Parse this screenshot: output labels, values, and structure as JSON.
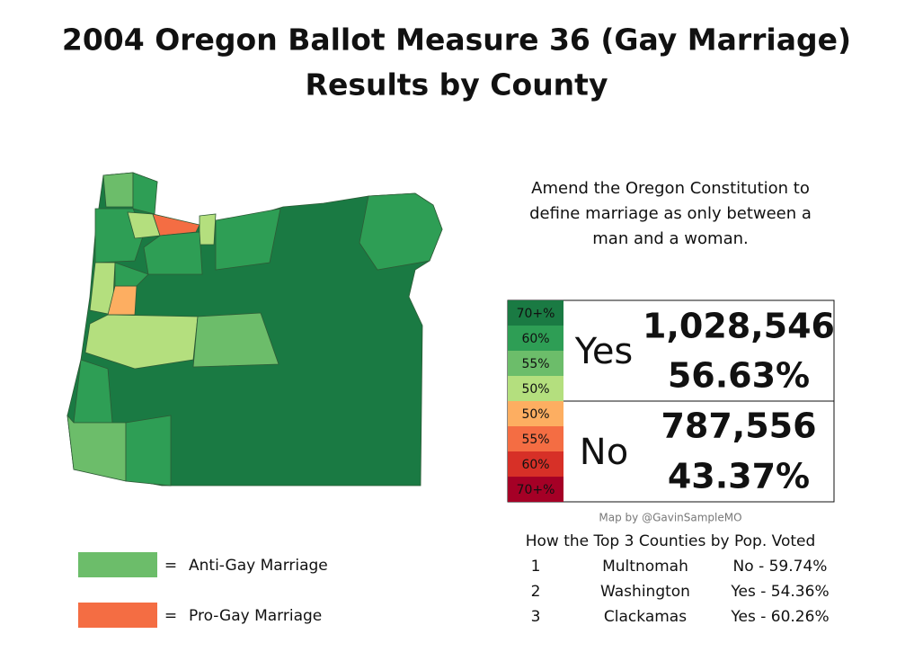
{
  "title": [
    "2004 Oregon Ballot Measure 36 (Gay Marriage)",
    "Results by County"
  ],
  "description": [
    "Amend the Oregon Constitution to",
    "define marriage as only between a",
    "man and a woman."
  ],
  "scale": {
    "yes": [
      {
        "label": "70+%",
        "color": "#1a7a43"
      },
      {
        "label": "60%",
        "color": "#2e9e55"
      },
      {
        "label": "55%",
        "color": "#6cbd6a"
      },
      {
        "label": "50%",
        "color": "#b4df7e"
      }
    ],
    "no": [
      {
        "label": "50%",
        "color": "#fdae61"
      },
      {
        "label": "55%",
        "color": "#f46d43"
      },
      {
        "label": "60%",
        "color": "#d73027"
      },
      {
        "label": "70+%",
        "color": "#a50026"
      }
    ]
  },
  "results": [
    {
      "label": "Yes",
      "votes": "1,028,546",
      "percent": "56.63%"
    },
    {
      "label": "No",
      "votes": "787,556",
      "percent": "43.37%"
    }
  ],
  "credit": "Map by @GavinSampleMO",
  "top_counties": {
    "heading": "How the Top 3 Counties by Pop. Voted",
    "rows": [
      [
        "1",
        "Multnomah",
        "No - 59.74%"
      ],
      [
        "2",
        "Washington",
        "Yes - 54.36%"
      ],
      [
        "3",
        "Clackamas",
        "Yes - 60.26%"
      ]
    ]
  },
  "legend": [
    {
      "color": "#6cbd6a",
      "separator": "=",
      "label": "Anti-Gay Marriage"
    },
    {
      "color": "#f46d43",
      "separator": "=",
      "label": "Pro-Gay Marriage"
    }
  ]
}
